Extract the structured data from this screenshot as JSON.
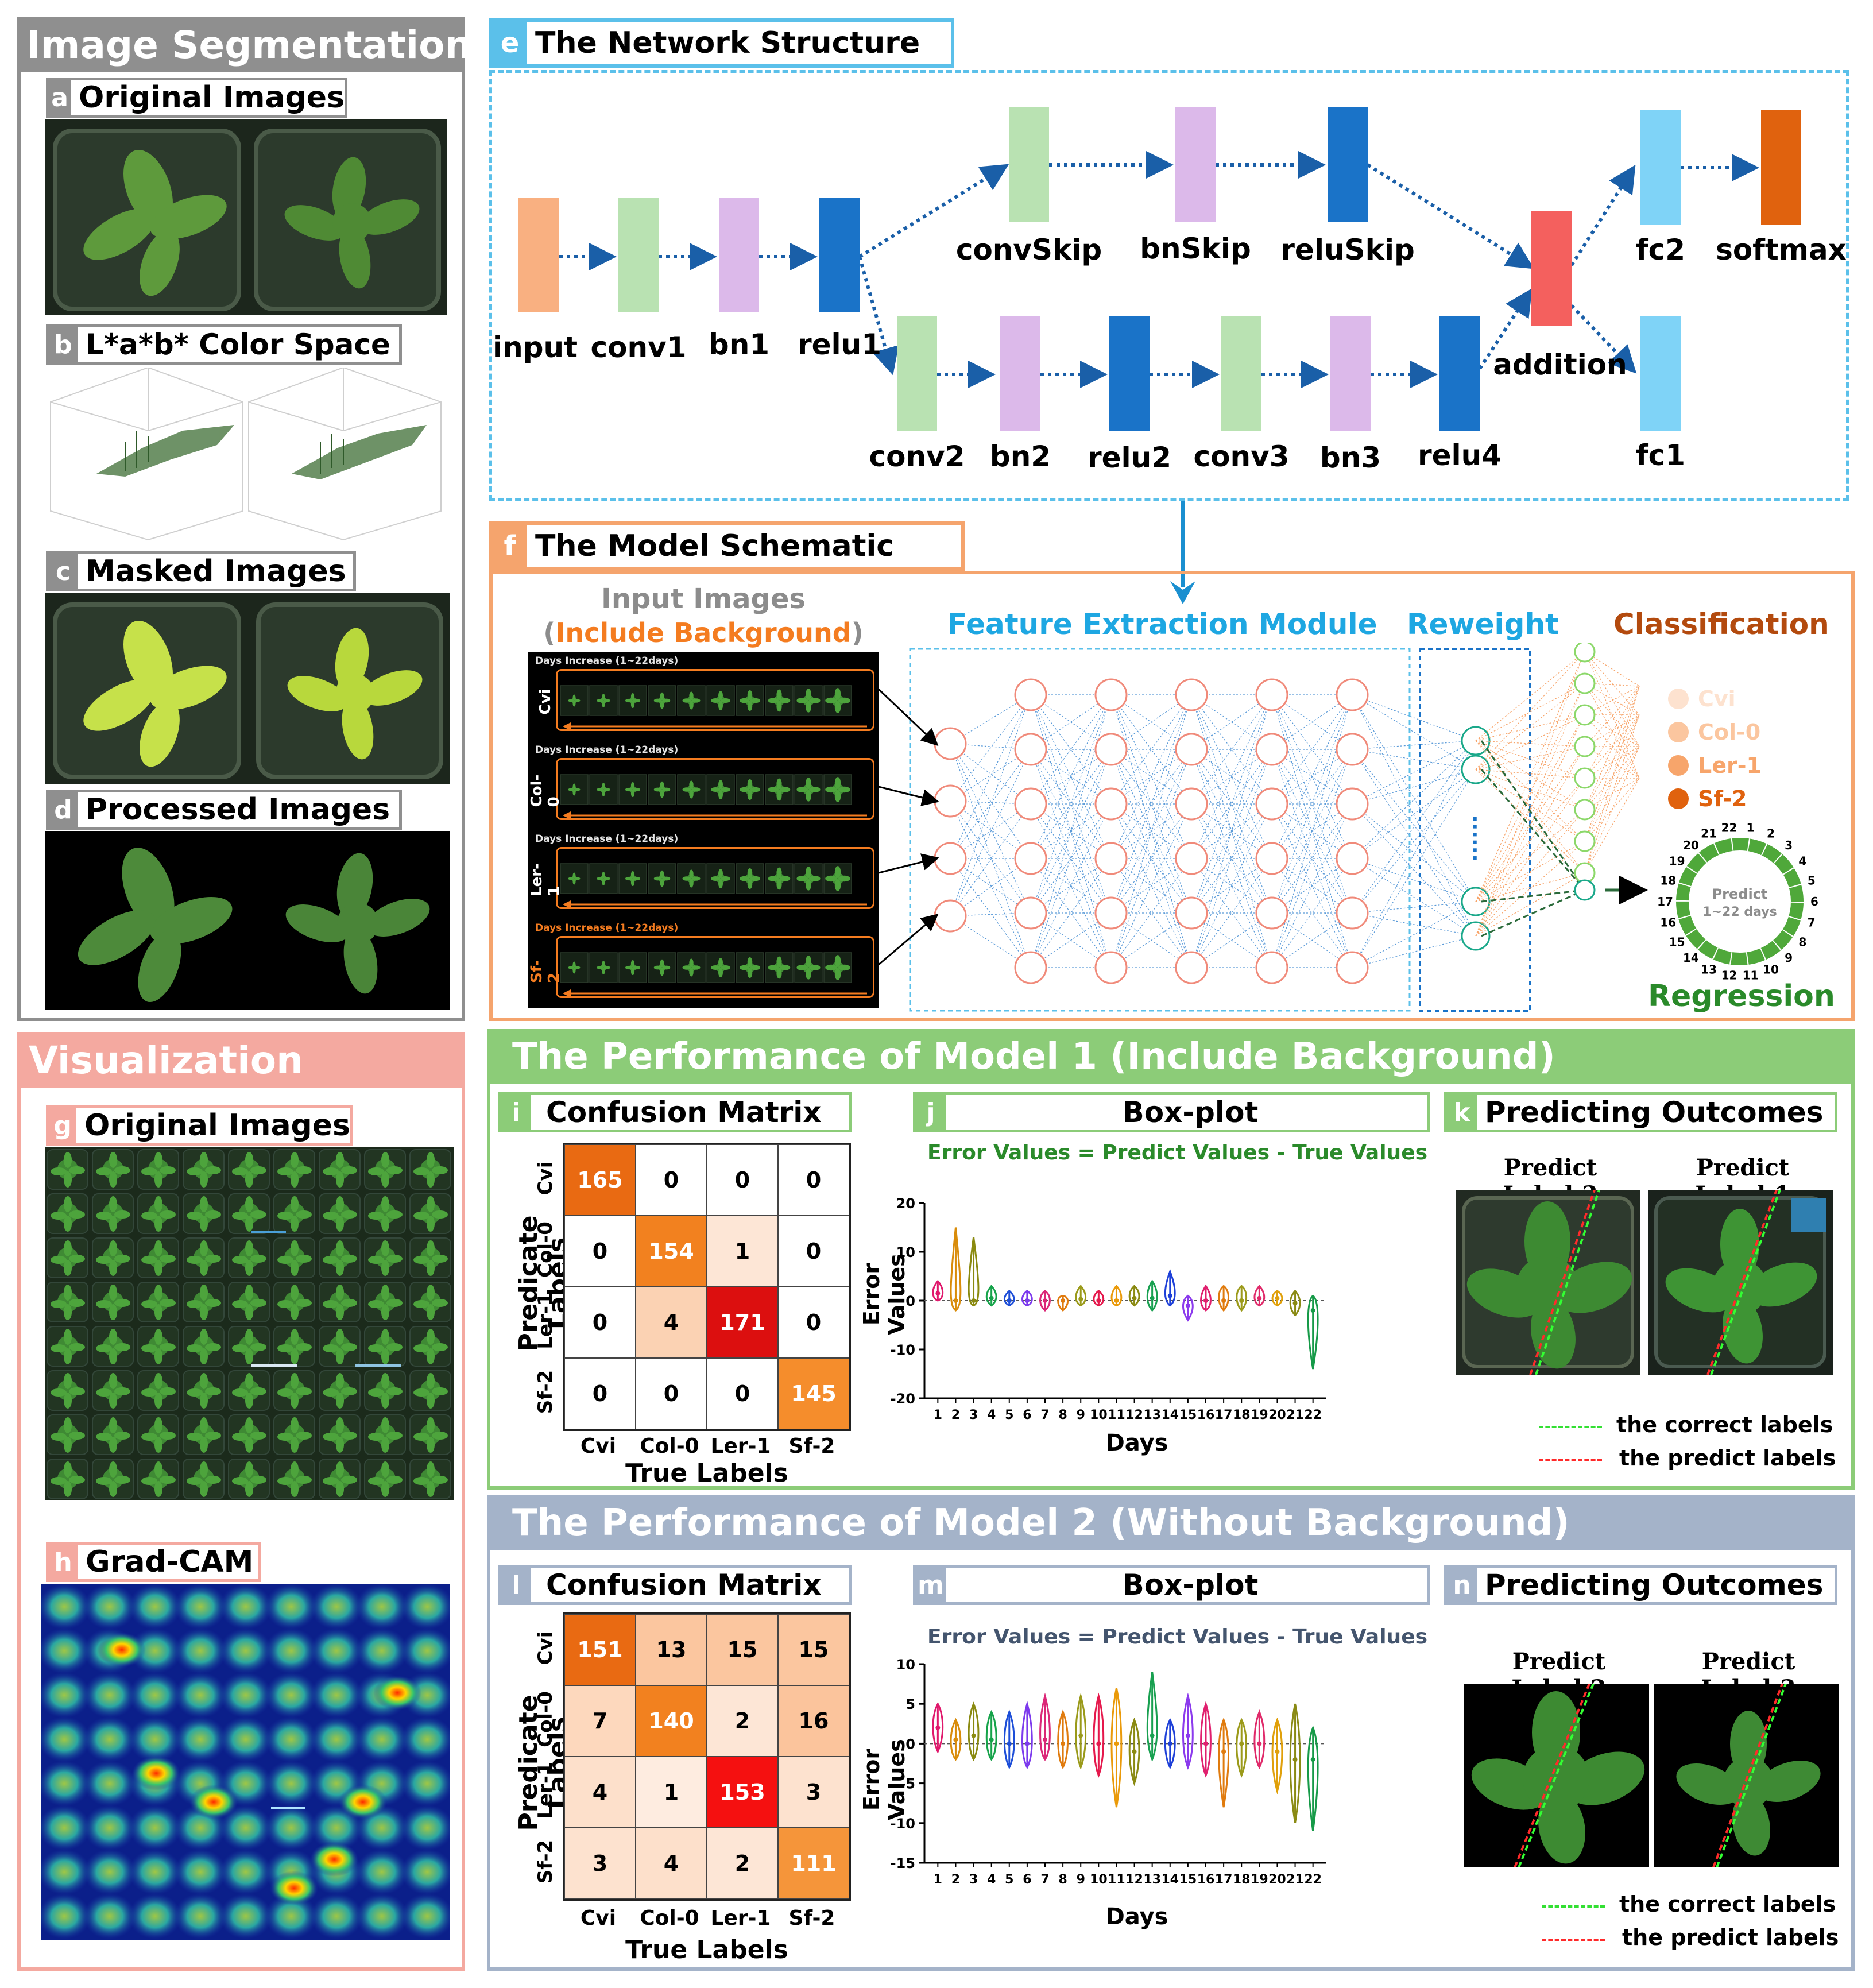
{
  "colors": {
    "gray_section": "#8f8f8f",
    "pink_section": "#f4a9a0",
    "blue_section": "#5bc0ea",
    "orange_section": "#f5a46d",
    "green_section": "#8ccc78",
    "slate_section": "#a4b3c9",
    "block_orange": "#f9b081",
    "block_green": "#b9e2b2",
    "block_lilac": "#dcb9ea",
    "block_blue": "#1a73c8",
    "block_red": "#f4605e",
    "block_sky": "#7fd3f7",
    "block_softmax": "#e0620e"
  },
  "segmentation": {
    "title": "Image Segmentation",
    "a": {
      "letter": "a",
      "label": "Original Images"
    },
    "b": {
      "letter": "b",
      "label": "L*a*b* Color Space"
    },
    "c": {
      "letter": "c",
      "label": "Masked Images"
    },
    "d": {
      "letter": "d",
      "label": "Processed Images"
    }
  },
  "visualization": {
    "title": "Visualization",
    "g": {
      "letter": "g",
      "label": "Original Images"
    },
    "h": {
      "letter": "h",
      "label": "Grad-CAM"
    }
  },
  "network": {
    "letter": "e",
    "title": "The Network Structure",
    "labels": {
      "input": "input",
      "conv1": "conv1",
      "bn1": "bn1",
      "relu1": "relu1",
      "convSkip": "convSkip",
      "bnSkip": "bnSkip",
      "reluSkip": "reluSkip",
      "conv2": "conv2",
      "bn2": "bn2",
      "relu2": "relu2",
      "conv3": "conv3",
      "bn3": "bn3",
      "relu4": "relu4",
      "addition": "addition",
      "fc2": "fc2",
      "softmax": "softmax",
      "fc1": "fc1"
    }
  },
  "schematic": {
    "letter": "f",
    "title": "The Model Schematic",
    "input_images": "Input Images",
    "include_background_open": "(",
    "include_background": "Include Background",
    "include_background_close": ")",
    "days_increase": "Days Increase (1~22days)",
    "cultivars": [
      "Cvi",
      "Col-0",
      "Ler-1",
      "Sf-2"
    ],
    "feature_extraction": "Feature Extraction Module",
    "reweight": "Reweight",
    "dots": "......",
    "classification": "Classification",
    "class_items": [
      "Cvi",
      "Col-0",
      "Ler-1",
      "Sf-2"
    ],
    "predict": "Predict",
    "predict_range": "1~22 days",
    "ring_numbers": [
      "1",
      "2",
      "3",
      "4",
      "5",
      "6",
      "7",
      "8",
      "9",
      "10",
      "11",
      "12",
      "13",
      "14",
      "15",
      "16",
      "17",
      "18",
      "19",
      "20",
      "21",
      "22"
    ],
    "regression": "Regression"
  },
  "model1": {
    "title": "The Performance of Model 1 (Include Background)",
    "confusion": {
      "letter": "i",
      "title": "Confusion Matrix",
      "ylabel": "Predicate Labels",
      "xlabel": "True Labels",
      "labels": [
        "Cvi",
        "Col-0",
        "Ler-1",
        "Sf-2"
      ],
      "rows": [
        {
          "cells": [
            {
              "v": "165",
              "c": "#e96a12",
              "t": "#ffffff"
            },
            {
              "v": "0",
              "c": "#ffffff",
              "t": "#000000"
            },
            {
              "v": "0",
              "c": "#ffffff",
              "t": "#000000"
            },
            {
              "v": "0",
              "c": "#ffffff",
              "t": "#000000"
            }
          ]
        },
        {
          "cells": [
            {
              "v": "0",
              "c": "#ffffff",
              "t": "#000000"
            },
            {
              "v": "154",
              "c": "#f2811f",
              "t": "#ffffff"
            },
            {
              "v": "1",
              "c": "#fde6d6",
              "t": "#000000"
            },
            {
              "v": "0",
              "c": "#ffffff",
              "t": "#000000"
            }
          ]
        },
        {
          "cells": [
            {
              "v": "0",
              "c": "#ffffff",
              "t": "#000000"
            },
            {
              "v": "4",
              "c": "#fbd2b3",
              "t": "#000000"
            },
            {
              "v": "171",
              "c": "#dc0f0f",
              "t": "#ffffff"
            },
            {
              "v": "0",
              "c": "#ffffff",
              "t": "#000000"
            }
          ]
        },
        {
          "cells": [
            {
              "v": "0",
              "c": "#ffffff",
              "t": "#000000"
            },
            {
              "v": "0",
              "c": "#ffffff",
              "t": "#000000"
            },
            {
              "v": "0",
              "c": "#ffffff",
              "t": "#000000"
            },
            {
              "v": "145",
              "c": "#f58d2c",
              "t": "#ffffff"
            }
          ]
        }
      ]
    },
    "boxplot": {
      "letter": "j",
      "title": "Box-plot",
      "subtitle": "Error Values = Predict Values - True Values",
      "ylabel": "Error Values",
      "xlabel": "Days"
    },
    "outcomes": {
      "letter": "k",
      "title": "Predicting Outcomes",
      "left": "Predict Label:3",
      "right": "Predict Label:1",
      "legend_correct": "the correct labels",
      "legend_predict": "the predict labels"
    }
  },
  "model2": {
    "title": "The Performance of Model 2 (Without Background)",
    "confusion": {
      "letter": "l",
      "title": "Confusion Matrix",
      "ylabel": "Predicate Labels",
      "xlabel": "True Labels",
      "labels": [
        "Cvi",
        "Col-0",
        "Ler-1",
        "Sf-2"
      ],
      "rows": [
        {
          "cells": [
            {
              "v": "151",
              "c": "#e96a12",
              "t": "#ffffff"
            },
            {
              "v": "13",
              "c": "#fbc69f",
              "t": "#000000"
            },
            {
              "v": "15",
              "c": "#fbc69f",
              "t": "#000000"
            },
            {
              "v": "15",
              "c": "#fbc69f",
              "t": "#000000"
            }
          ]
        },
        {
          "cells": [
            {
              "v": "7",
              "c": "#fdd8bd",
              "t": "#000000"
            },
            {
              "v": "140",
              "c": "#f2811f",
              "t": "#ffffff"
            },
            {
              "v": "2",
              "c": "#fde6d6",
              "t": "#000000"
            },
            {
              "v": "16",
              "c": "#fbc49c",
              "t": "#000000"
            }
          ]
        },
        {
          "cells": [
            {
              "v": "4",
              "c": "#fde0cb",
              "t": "#000000"
            },
            {
              "v": "1",
              "c": "#feece0",
              "t": "#000000"
            },
            {
              "v": "153",
              "c": "#f51010",
              "t": "#ffffff"
            },
            {
              "v": "3",
              "c": "#fde2cf",
              "t": "#000000"
            }
          ]
        },
        {
          "cells": [
            {
              "v": "3",
              "c": "#fde2cf",
              "t": "#000000"
            },
            {
              "v": "4",
              "c": "#fde0cb",
              "t": "#000000"
            },
            {
              "v": "2",
              "c": "#fde6d6",
              "t": "#000000"
            },
            {
              "v": "111",
              "c": "#f5953a",
              "t": "#ffffff"
            }
          ]
        }
      ]
    },
    "boxplot": {
      "letter": "m",
      "title": "Box-plot",
      "subtitle": "Error Values = Predict Values - True Values",
      "ylabel": "Error Values",
      "xlabel": "Days"
    },
    "outcomes": {
      "letter": "n",
      "title": "Predicting Outcomes",
      "left": "Predict Label:2",
      "right": "Predict Label:3",
      "legend_correct": "the correct labels",
      "legend_predict": "the predict labels"
    }
  },
  "chart_data": [
    {
      "type": "violin",
      "title": "Error Values = Predict Values - True Values",
      "xlabel": "Days",
      "ylabel": "Error Values",
      "ylim": [
        -20,
        20
      ],
      "yticks": [
        "20",
        "10",
        "0",
        "-10",
        "-20"
      ],
      "categories": [
        "1",
        "2",
        "3",
        "4",
        "5",
        "6",
        "7",
        "8",
        "9",
        "10",
        "11",
        "12",
        "13",
        "14",
        "15",
        "16",
        "17",
        "18",
        "19",
        "20",
        "21",
        "22"
      ],
      "series": [
        {
          "values": [
            {
              "min": 0,
              "q1": 0.5,
              "median": 1.5,
              "q3": 2.5,
              "max": 4
            },
            {
              "min": -2,
              "q1": -1,
              "median": 0,
              "q3": 2,
              "max": 15
            },
            {
              "min": -1,
              "q1": -0.5,
              "median": 0,
              "q3": 3,
              "max": 13
            },
            {
              "min": -1,
              "q1": 0,
              "median": 0.5,
              "q3": 1.5,
              "max": 3
            },
            {
              "min": -1,
              "q1": -0.3,
              "median": 0,
              "q3": 0.8,
              "max": 2
            },
            {
              "min": -1,
              "q1": -0.5,
              "median": 0,
              "q3": 1,
              "max": 2
            },
            {
              "min": -2,
              "q1": -0.8,
              "median": 0,
              "q3": 1,
              "max": 2
            },
            {
              "min": -2,
              "q1": -0.8,
              "median": 0,
              "q3": 0.8,
              "max": 1
            },
            {
              "min": -1,
              "q1": -0.3,
              "median": 0.3,
              "q3": 1.5,
              "max": 3
            },
            {
              "min": -1,
              "q1": -0.5,
              "median": 0,
              "q3": 1,
              "max": 2
            },
            {
              "min": -1,
              "q1": -0.5,
              "median": 0,
              "q3": 1.5,
              "max": 3
            },
            {
              "min": -1,
              "q1": 0,
              "median": 0.5,
              "q3": 1.8,
              "max": 3
            },
            {
              "min": -2,
              "q1": -0.5,
              "median": 0.5,
              "q3": 2,
              "max": 4
            },
            {
              "min": -1,
              "q1": 0,
              "median": 1,
              "q3": 2.5,
              "max": 6
            },
            {
              "min": -4,
              "q1": -2,
              "median": -1,
              "q3": 0,
              "max": 1
            },
            {
              "min": -2,
              "q1": -1,
              "median": 0,
              "q3": 1,
              "max": 3
            },
            {
              "min": -2,
              "q1": -0.5,
              "median": 0,
              "q3": 2,
              "max": 3
            },
            {
              "min": -2,
              "q1": -0.5,
              "median": 0,
              "q3": 2,
              "max": 3
            },
            {
              "min": -1,
              "q1": -0.3,
              "median": 0.5,
              "q3": 1.5,
              "max": 3
            },
            {
              "min": -1,
              "q1": -0.3,
              "median": 0.5,
              "q3": 1.2,
              "max": 2
            },
            {
              "min": -3,
              "q1": -1.5,
              "median": -0.5,
              "q3": 0.5,
              "max": 2
            },
            {
              "min": -14,
              "q1": -6,
              "median": -2,
              "q3": 0,
              "max": 1
            }
          ]
        }
      ]
    },
    {
      "type": "violin",
      "title": "Error Values = Predict Values - True Values",
      "xlabel": "Days",
      "ylabel": "Error Values",
      "ylim": [
        -15,
        10
      ],
      "yticks": [
        "10",
        "5",
        "0",
        "-5",
        "-10",
        "-15"
      ],
      "categories": [
        "1",
        "2",
        "3",
        "4",
        "5",
        "6",
        "7",
        "8",
        "9",
        "10",
        "11",
        "12",
        "13",
        "14",
        "15",
        "16",
        "17",
        "18",
        "19",
        "20",
        "21",
        "22"
      ],
      "series": [
        {
          "values": [
            {
              "min": -1,
              "q1": 0.8,
              "median": 2,
              "q3": 3.5,
              "max": 5
            },
            {
              "min": -2,
              "q1": -1,
              "median": 0.5,
              "q3": 1.5,
              "max": 3
            },
            {
              "min": -2,
              "q1": -0.5,
              "median": 1,
              "q3": 3,
              "max": 5
            },
            {
              "min": -2,
              "q1": -1,
              "median": 0.5,
              "q3": 2.5,
              "max": 4
            },
            {
              "min": -3,
              "q1": -1.5,
              "median": 0,
              "q3": 2,
              "max": 4
            },
            {
              "min": -3,
              "q1": -1.5,
              "median": 0,
              "q3": 2,
              "max": 5
            },
            {
              "min": -2,
              "q1": -1,
              "median": 0.5,
              "q3": 3,
              "max": 6
            },
            {
              "min": -3,
              "q1": -1.5,
              "median": 0,
              "q3": 2,
              "max": 4
            },
            {
              "min": -3,
              "q1": -1,
              "median": 1,
              "q3": 3,
              "max": 6
            },
            {
              "min": -4,
              "q1": -2,
              "median": 0,
              "q3": 3,
              "max": 6
            },
            {
              "min": -8,
              "q1": -3,
              "median": 0,
              "q3": 3,
              "max": 7
            },
            {
              "min": -5,
              "q1": -2.5,
              "median": -1,
              "q3": 1,
              "max": 3
            },
            {
              "min": -2,
              "q1": 0,
              "median": 1,
              "q3": 3,
              "max": 9
            },
            {
              "min": -3,
              "q1": -1.5,
              "median": 0,
              "q3": 1.5,
              "max": 3
            },
            {
              "min": -3,
              "q1": -1,
              "median": 1,
              "q3": 3,
              "max": 6
            },
            {
              "min": -4,
              "q1": -2,
              "median": 0,
              "q3": 2.5,
              "max": 5
            },
            {
              "min": -8,
              "q1": -3,
              "median": -1,
              "q3": 1,
              "max": 3
            },
            {
              "min": -4,
              "q1": -2,
              "median": 0,
              "q3": 1.5,
              "max": 3
            },
            {
              "min": -3,
              "q1": -1.5,
              "median": 0,
              "q3": 2,
              "max": 4
            },
            {
              "min": -6,
              "q1": -3,
              "median": -1,
              "q3": 1,
              "max": 3
            },
            {
              "min": -10,
              "q1": -5,
              "median": -2,
              "q3": 1,
              "max": 5
            },
            {
              "min": -11,
              "q1": -5,
              "median": -2,
              "q3": 0,
              "max": 2
            }
          ]
        }
      ]
    }
  ]
}
